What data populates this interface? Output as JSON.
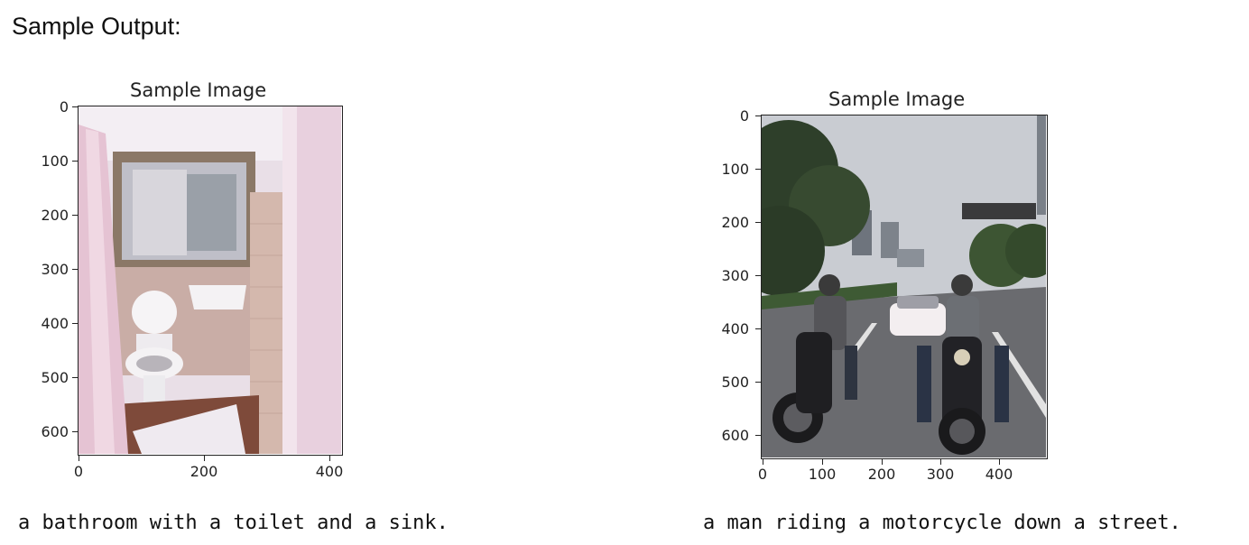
{
  "heading": "Sample Output:",
  "panels": [
    {
      "title": "Sample Image",
      "y_ticks": [
        "0",
        "100",
        "200",
        "300",
        "400",
        "500",
        "600"
      ],
      "x_ticks": [
        "0",
        "200",
        "400"
      ],
      "caption": "a bathroom with a toilet and a sink."
    },
    {
      "title": "Sample Image",
      "y_ticks": [
        "0",
        "100",
        "200",
        "300",
        "400",
        "500",
        "600"
      ],
      "x_ticks": [
        "0",
        "100",
        "200",
        "300",
        "400"
      ],
      "caption": "a man riding a motorcycle down a street."
    }
  ]
}
